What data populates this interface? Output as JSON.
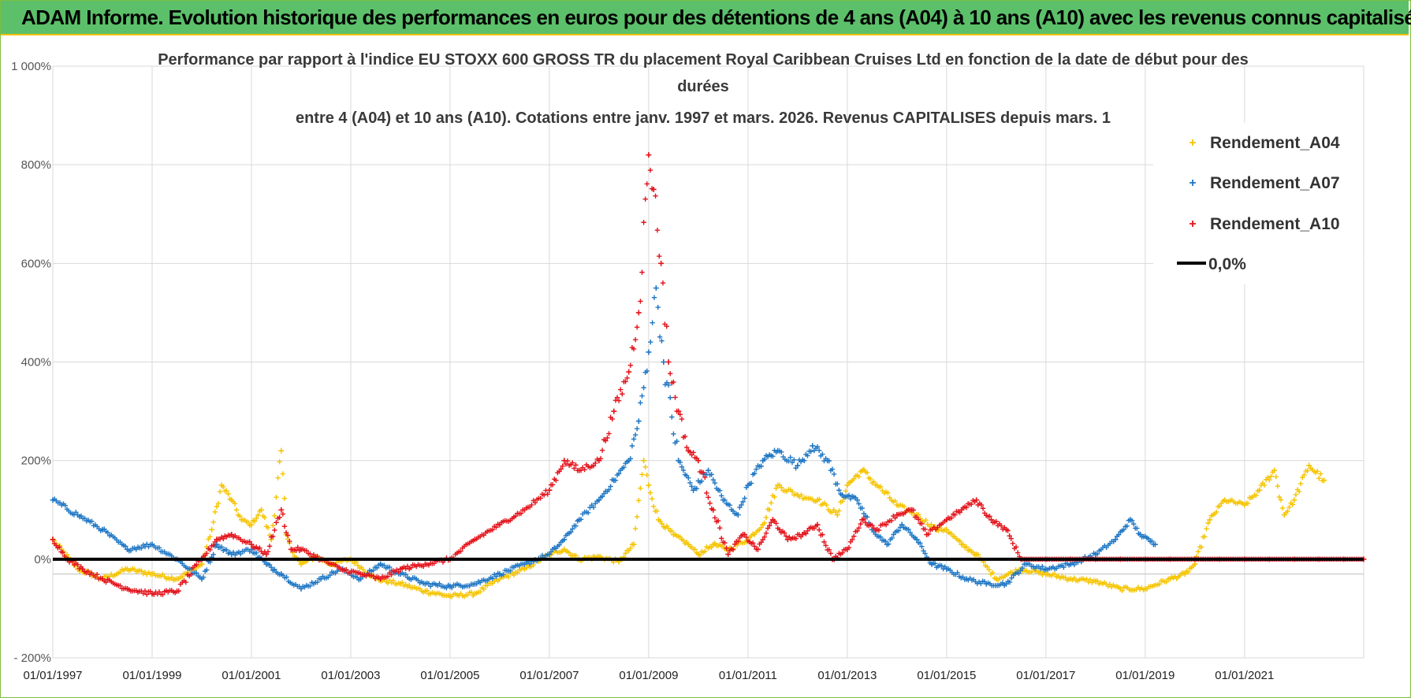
{
  "banner": {
    "title": "ADAM Informe. Evolution historique des performances en euros pour des détentions de 4 ans (A04) à 10 ans (A10) avec les revenus connus capitalisés"
  },
  "colors": {
    "banner_bg": "#5cc06a",
    "A04": "#f5c400",
    "A07": "#1f77c4",
    "A10": "#e3131b",
    "zero": "#000000"
  },
  "chart_data": {
    "type": "scatter",
    "title_lines": [
      "Performance par rapport à l'indice EU STOXX 600 GROSS TR  du placement Royal Caribbean Cruises Ltd en fonction de la date de début pour des",
      "durées",
      "entre 4 (A04) et 10 ans (A10). Cotations entre janv. 1997 et mars. 2026. Revenus CAPITALISES depuis mars. 1"
    ],
    "xlabel": "",
    "ylabel": "",
    "x_range": [
      1997.0,
      2023.4
    ],
    "ylim": [
      -200,
      1000
    ],
    "y_ticks": [
      -200,
      0,
      200,
      400,
      600,
      800,
      1000
    ],
    "y_tick_labels": [
      "- 200%",
      "0%",
      "200%",
      "400%",
      "600%",
      "800%",
      "1 000%"
    ],
    "x_ticks": [
      1997,
      1999,
      2001,
      2003,
      2005,
      2007,
      2009,
      2011,
      2013,
      2015,
      2017,
      2019,
      2021
    ],
    "x_tick_labels": [
      "01/01/1997",
      "01/01/1999",
      "01/01/2001",
      "01/01/2003",
      "01/01/2005",
      "01/01/2007",
      "01/01/2009",
      "01/01/2011",
      "01/01/2013",
      "01/01/2015",
      "01/01/2017",
      "01/01/2019",
      "01/01/2021"
    ],
    "grid": true,
    "legend_position": "top-right",
    "legend": [
      "Rendement_A04",
      "Rendement_A07",
      "Rendement_A10",
      "0,0%"
    ],
    "series": [
      {
        "name": "Rendement_A04",
        "x": [
          1997.0,
          1997.5,
          1998.0,
          1998.5,
          1999.0,
          1999.5,
          2000.0,
          2000.2,
          2000.4,
          2000.6,
          2000.8,
          2001.0,
          2001.2,
          2001.4,
          2001.6,
          2001.7,
          2001.8,
          2002.0,
          2002.3,
          2002.6,
          2003.0,
          2003.5,
          2004.0,
          2004.5,
          2005.0,
          2005.5,
          2006.0,
          2006.5,
          2007.0,
          2007.3,
          2007.6,
          2008.0,
          2008.4,
          2008.7,
          2008.9,
          2009.0,
          2009.2,
          2009.5,
          2009.8,
          2010.0,
          2010.3,
          2010.6,
          2011.0,
          2011.3,
          2011.6,
          2012.0,
          2012.4,
          2012.8,
          2013.0,
          2013.3,
          2013.6,
          2014.0,
          2014.4,
          2014.8,
          2015.0,
          2015.3,
          2015.6,
          2016.0,
          2016.5,
          2017.0,
          2017.5,
          2018.0,
          2018.5,
          2019.0,
          2019.5,
          2019.8,
          2020.0,
          2020.3,
          2020.6,
          2021.0,
          2021.3,
          2021.6,
          2021.8,
          2022.0,
          2022.3,
          2022.6
        ],
        "values": [
          40,
          -20,
          -40,
          -20,
          -30,
          -40,
          -10,
          60,
          150,
          120,
          80,
          70,
          100,
          40,
          220,
          50,
          20,
          -10,
          5,
          -10,
          0,
          -40,
          -50,
          -65,
          -75,
          -70,
          -40,
          -20,
          10,
          20,
          0,
          5,
          -5,
          30,
          200,
          150,
          80,
          50,
          30,
          10,
          30,
          20,
          40,
          70,
          150,
          130,
          120,
          90,
          150,
          180,
          150,
          110,
          90,
          60,
          60,
          30,
          10,
          -40,
          -20,
          -30,
          -40,
          -45,
          -60,
          -60,
          -40,
          -30,
          -10,
          80,
          120,
          110,
          140,
          180,
          90,
          120,
          190,
          160
        ]
      },
      {
        "name": "Rendement_A07",
        "x": [
          1997.0,
          1997.5,
          1998.0,
          1998.5,
          1999.0,
          1999.5,
          2000.0,
          2000.3,
          2000.6,
          2001.0,
          2001.3,
          2001.6,
          2002.0,
          2002.4,
          2002.8,
          2003.2,
          2003.6,
          2004.0,
          2004.5,
          2005.0,
          2005.5,
          2006.0,
          2006.5,
          2007.0,
          2007.3,
          2007.6,
          2008.0,
          2008.3,
          2008.6,
          2008.8,
          2009.0,
          2009.15,
          2009.3,
          2009.6,
          2009.9,
          2010.2,
          2010.5,
          2010.8,
          2011.0,
          2011.3,
          2011.6,
          2012.0,
          2012.3,
          2012.6,
          2012.9,
          2013.2,
          2013.5,
          2013.8,
          2014.1,
          2014.4,
          2014.7,
          2015.0,
          2015.4,
          2015.8,
          2016.2,
          2016.6,
          2017.0,
          2017.5,
          2018.0,
          2018.4,
          2018.7,
          2018.9,
          2019.2
        ],
        "values": [
          120,
          90,
          60,
          20,
          30,
          0,
          -40,
          30,
          10,
          20,
          -10,
          -30,
          -60,
          -40,
          -20,
          -40,
          -10,
          -30,
          -50,
          -55,
          -50,
          -30,
          -10,
          10,
          40,
          80,
          120,
          160,
          200,
          280,
          420,
          550,
          400,
          200,
          140,
          180,
          120,
          90,
          150,
          200,
          220,
          190,
          230,
          200,
          130,
          120,
          60,
          30,
          70,
          40,
          -10,
          -20,
          -40,
          -50,
          -50,
          -10,
          -20,
          -10,
          10,
          40,
          80,
          50,
          30
        ]
      },
      {
        "name": "Rendement_A10",
        "x": [
          1997.0,
          1997.3,
          1997.6,
          1998.0,
          1998.5,
          1999.0,
          1999.5,
          2000.0,
          2000.3,
          2000.6,
          2001.0,
          2001.3,
          2001.6,
          2001.8,
          2002.0,
          2002.4,
          2002.8,
          2003.2,
          2003.6,
          2004.0,
          2004.5,
          2005.0,
          2005.5,
          2006.0,
          2006.5,
          2007.0,
          2007.3,
          2007.6,
          2008.0,
          2008.3,
          2008.6,
          2008.8,
          2009.0,
          2009.1,
          2009.25,
          2009.4,
          2009.6,
          2009.8,
          2010.0,
          2010.3,
          2010.6,
          2010.9,
          2011.2,
          2011.5,
          2011.8,
          2012.1,
          2012.4,
          2012.7,
          2013.0,
          2013.3,
          2013.6,
          2014.0,
          2014.3,
          2014.6,
          2015.0,
          2015.3,
          2015.6,
          2015.9,
          2016.2,
          2016.5,
          2017.0,
          2017.5,
          2018.0,
          2018.5,
          2019.0,
          2019.5,
          2020.0,
          2020.5,
          2021.0,
          2021.5,
          2022.0,
          2022.5,
          2023.0,
          2023.4
        ],
        "values": [
          40,
          0,
          -20,
          -40,
          -60,
          -70,
          -65,
          0,
          40,
          50,
          30,
          10,
          100,
          20,
          20,
          0,
          -20,
          -30,
          -40,
          -20,
          -10,
          0,
          40,
          70,
          100,
          140,
          200,
          180,
          200,
          300,
          380,
          500,
          820,
          750,
          600,
          400,
          300,
          220,
          200,
          100,
          10,
          50,
          20,
          80,
          40,
          50,
          70,
          0,
          20,
          80,
          60,
          90,
          100,
          50,
          80,
          100,
          120,
          80,
          60,
          0,
          0,
          0,
          0,
          0,
          0,
          0,
          0,
          0,
          0,
          0,
          0,
          0,
          0,
          0
        ]
      },
      {
        "name": "0,0%",
        "x": [
          1997.0,
          2023.4
        ],
        "values": [
          0,
          0
        ]
      }
    ]
  }
}
